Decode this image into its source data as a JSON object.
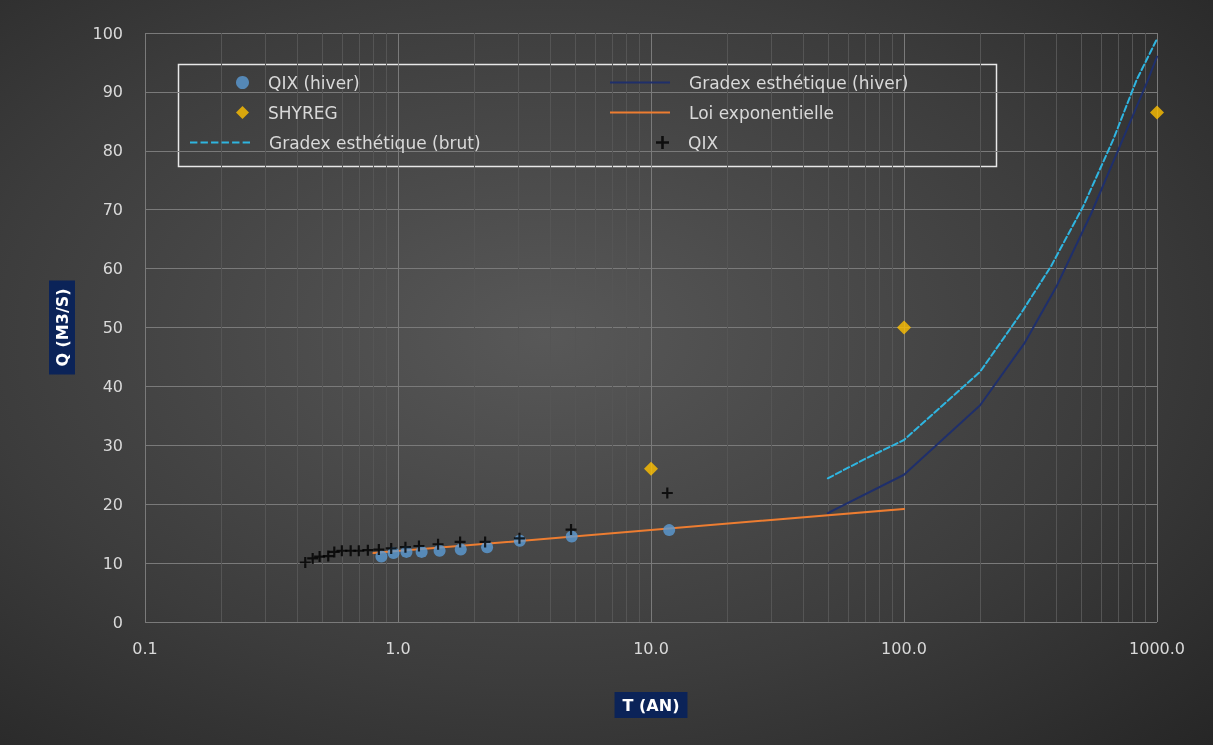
{
  "chart_data": {
    "type": "scatter",
    "xlabel": "T (AN)",
    "ylabel": "Q (M3/S)",
    "log": "x",
    "xlim": [
      0.1,
      1000
    ],
    "xticks": [
      {
        "value": 0.1,
        "label": "0.1"
      },
      {
        "value": 1,
        "label": "1.0"
      },
      {
        "value": 10,
        "label": "10.0"
      },
      {
        "value": 100,
        "label": "100.0"
      },
      {
        "value": 1000,
        "label": "1000.0"
      }
    ],
    "ylim": [
      0,
      100
    ],
    "yticks": [
      0,
      10,
      20,
      30,
      40,
      50,
      60,
      70,
      80,
      90,
      100
    ],
    "grid": true,
    "legend": "top left",
    "series": [
      {
        "name": "QIX (hiver)",
        "marker": "circle",
        "color": "#5b9bd5",
        "x": [
          0.86,
          0.96,
          1.08,
          1.24,
          1.46,
          1.77,
          2.25,
          3.03,
          4.86,
          11.8
        ],
        "values": [
          11.1,
          11.7,
          11.9,
          11.9,
          12.1,
          12.3,
          12.7,
          13.8,
          14.5,
          15.6
        ]
      },
      {
        "name": "Gradex esthétique (hiver)",
        "type": "line",
        "marker": "none",
        "line_style": "solid",
        "color": "#1f2f6b",
        "x": [
          50,
          100,
          200,
          300,
          400,
          550,
          730,
          910,
          1000
        ],
        "values": [
          18.5,
          25.0,
          36.8,
          47.4,
          56.9,
          69.4,
          81.8,
          91.5,
          96
        ]
      },
      {
        "name": "SHYREG",
        "marker": "diamond",
        "color": "#ffc000",
        "x": [
          10,
          100,
          1000
        ],
        "values": [
          26,
          50,
          86.5
        ]
      },
      {
        "name": "Loi exponentielle",
        "type": "line",
        "marker": "none",
        "line_style": "solid",
        "color": "#ed7d31",
        "x": [
          0.8,
          100
        ],
        "values": [
          11.7,
          19.2
        ]
      },
      {
        "name": "Gradex esthétique (brut)",
        "type": "line",
        "marker": "none",
        "line_style": "dashed",
        "color": "#2fb5e0",
        "x": [
          50,
          71,
          100,
          200,
          290,
          380,
          510,
          670,
          830,
          1000
        ],
        "values": [
          24.4,
          27.8,
          30.9,
          42.5,
          52.4,
          60.3,
          70.5,
          81.8,
          92,
          99
        ]
      },
      {
        "name": "QIX",
        "marker": "cross",
        "color": "#000000",
        "x": [
          0.43,
          0.46,
          0.49,
          0.53,
          0.56,
          0.6,
          0.65,
          0.7,
          0.76,
          0.84,
          0.94,
          1.07,
          1.21,
          1.44,
          1.76,
          2.21,
          3.02,
          4.83,
          11.6
        ],
        "values": [
          10.1,
          10.8,
          11.1,
          11.2,
          11.9,
          12.1,
          12.1,
          12.1,
          12.2,
          12.3,
          12.5,
          12.7,
          12.9,
          13.2,
          13.6,
          13.6,
          14.2,
          15.7,
          21.9
        ]
      }
    ]
  }
}
